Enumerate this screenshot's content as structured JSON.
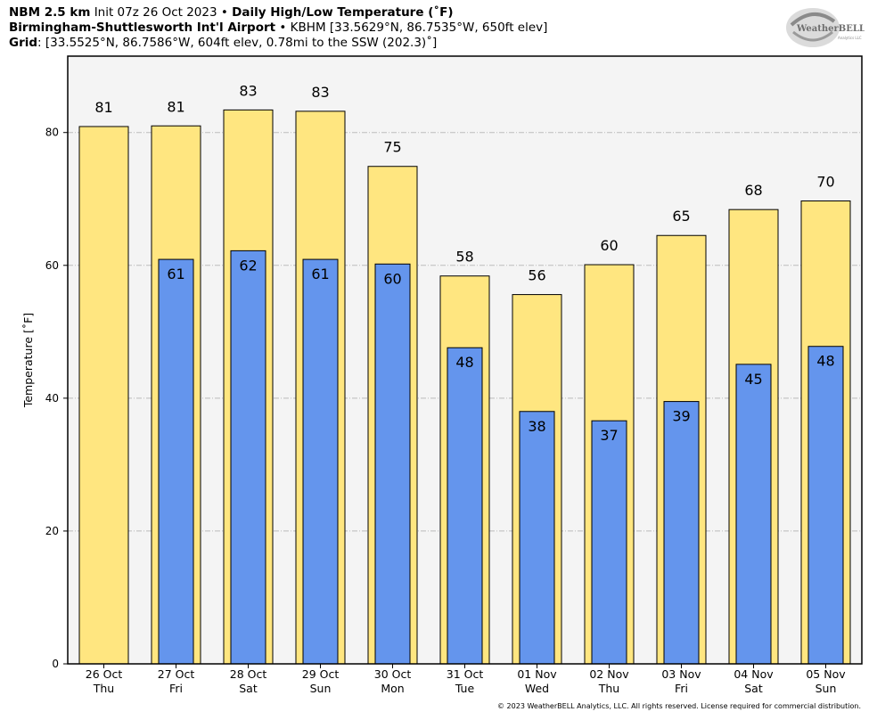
{
  "header": {
    "line1_model": "NBM 2.5 km",
    "line1_init": "Init 07z 26 Oct 2023",
    "line1_sep": "•",
    "line1_product": "Daily High/Low Temperature (˚F)",
    "line2_site": "Birmingham-Shuttlesworth Int'l Airport",
    "line2_sep": "•",
    "line2_details": "KBHM [33.5629°N, 86.7535°W, 650ft elev]",
    "line3_label": "Grid",
    "line3_details": ": [33.5525°N, 86.7586°W, 604ft elev, 0.78mi to the SSW (202.3)˚]"
  },
  "logo": {
    "text": "WeatherBELL",
    "subtext": "Analytics LLC"
  },
  "copyright": "© 2023 WeatherBELL Analytics, LLC. All rights reserved. License required for commercial distribution.",
  "colors": {
    "high_bar": "#FFE680",
    "low_bar": "#6495ED",
    "plot_bg": "#F4F4F4",
    "grid": "#BBBBBB"
  },
  "chart_data": {
    "type": "bar",
    "ylabel": "Temperature [˚F]",
    "ylim": [
      0,
      91.5
    ],
    "yticks": [
      0,
      20,
      40,
      60,
      80
    ],
    "grid": true,
    "categories": [
      [
        "26 Oct",
        "Thu"
      ],
      [
        "27 Oct",
        "Fri"
      ],
      [
        "28 Oct",
        "Sat"
      ],
      [
        "29 Oct",
        "Sun"
      ],
      [
        "30 Oct",
        "Mon"
      ],
      [
        "31 Oct",
        "Tue"
      ],
      [
        "01 Nov",
        "Wed"
      ],
      [
        "02 Nov",
        "Thu"
      ],
      [
        "03 Nov",
        "Fri"
      ],
      [
        "04 Nov",
        "Sat"
      ],
      [
        "05 Nov",
        "Sun"
      ]
    ],
    "series": [
      {
        "values": [
          80.9,
          81.0,
          83.4,
          83.2,
          74.9,
          58.4,
          55.6,
          60.1,
          64.5,
          68.4,
          69.7
        ],
        "labels": [
          "81",
          "81",
          "83",
          "83",
          "75",
          "58",
          "56",
          "60",
          "65",
          "68",
          "70"
        ]
      },
      {
        "values": [
          null,
          60.9,
          62.2,
          60.9,
          60.2,
          47.6,
          38.0,
          36.6,
          39.5,
          45.1,
          47.8
        ],
        "labels": [
          "",
          "61",
          "62",
          "61",
          "60",
          "48",
          "38",
          "37",
          "39",
          "45",
          "48"
        ]
      }
    ]
  }
}
